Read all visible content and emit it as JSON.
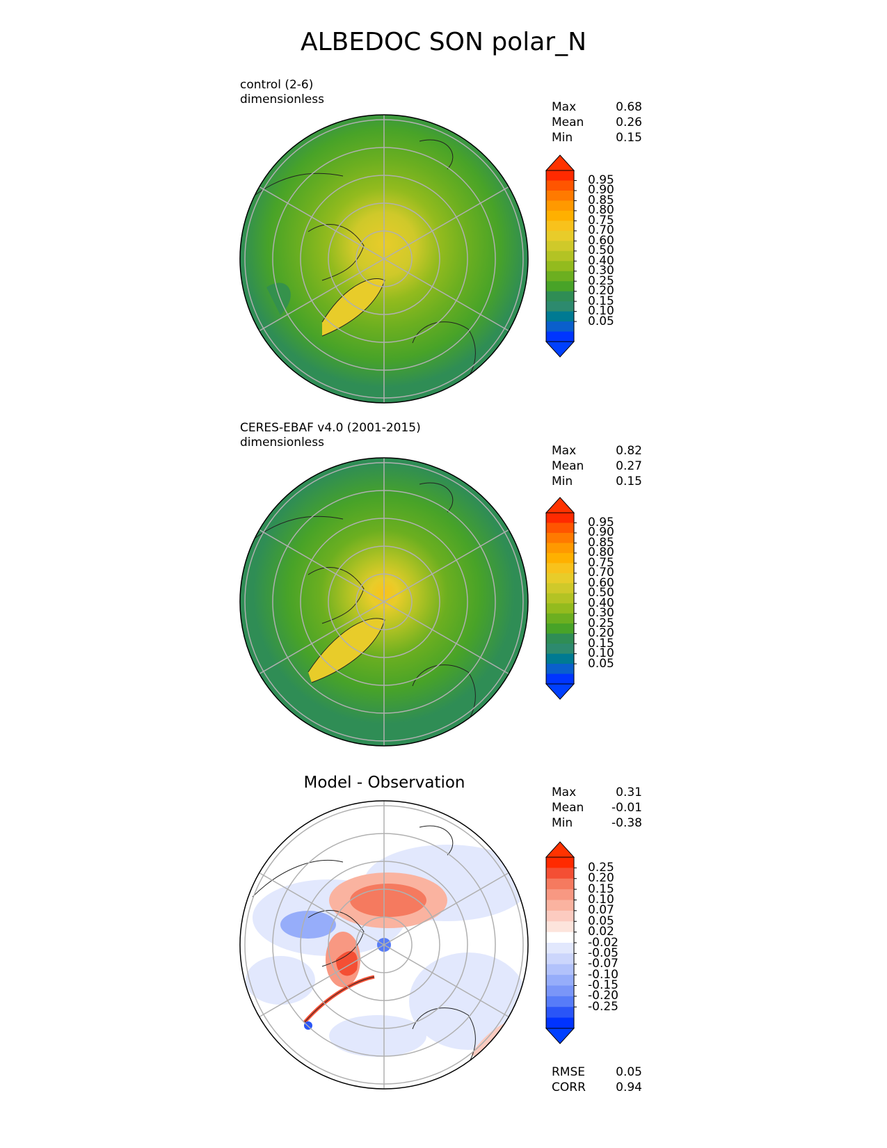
{
  "title": "ALBEDOC SON polar_N",
  "panels": [
    {
      "subtitle_line1": "control (2-6)",
      "subtitle_line2": "dimensionless",
      "stats": {
        "max_label": "Max",
        "max": "0.68",
        "mean_label": "Mean",
        "mean": "0.26",
        "min_label": "Min",
        "min": "0.15"
      }
    },
    {
      "subtitle_line1": "CERES-EBAF v4.0 (2001-2015)",
      "subtitle_line2": "dimensionless",
      "stats": {
        "max_label": "Max",
        "max": "0.82",
        "mean_label": "Mean",
        "mean": "0.27",
        "min_label": "Min",
        "min": "0.15"
      }
    },
    {
      "title": "Model - Observation",
      "stats": {
        "max_label": "Max",
        "max": "0.31",
        "mean_label": "Mean",
        "mean": "-0.01",
        "min_label": "Min",
        "min": "-0.38"
      },
      "rmse_label": "RMSE",
      "rmse": "0.05",
      "corr_label": "CORR",
      "corr": "0.94"
    }
  ],
  "colorbars": {
    "field": {
      "ticks": [
        "0.95",
        "0.90",
        "0.85",
        "0.80",
        "0.75",
        "0.70",
        "0.60",
        "0.50",
        "0.40",
        "0.30",
        "0.25",
        "0.20",
        "0.15",
        "0.10",
        "0.05"
      ],
      "colors": [
        "#ff2a00",
        "#ff5500",
        "#ff7a00",
        "#ff9900",
        "#ffb000",
        "#f8c21c",
        "#e8cc2a",
        "#cfc92a",
        "#b3c324",
        "#93bb1e",
        "#6caf20",
        "#48a328",
        "#2f8d55",
        "#2d8a6e",
        "#007a92",
        "#0a5fcc",
        "#0035ff"
      ],
      "over_color": "#ff3300",
      "under_color": "#0040ff"
    },
    "diff": {
      "ticks": [
        "0.25",
        "0.20",
        "0.15",
        "0.10",
        "0.07",
        "0.05",
        "0.02",
        "-0.02",
        "-0.05",
        "-0.07",
        "-0.10",
        "-0.15",
        "-0.20",
        "-0.25"
      ],
      "colors": [
        "#ff2a00",
        "#f44f34",
        "#f57a5f",
        "#f89882",
        "#fab3a0",
        "#fccbc0",
        "#fde4dc",
        "#ffffff",
        "#e2e8fd",
        "#ccd6fc",
        "#b2c2fb",
        "#96adfa",
        "#7a96f8",
        "#577cf8",
        "#2a55f7",
        "#0033ff"
      ],
      "over_color": "#ff3300",
      "under_color": "#0040ff"
    }
  },
  "chart_data": [
    {
      "type": "heatmap",
      "title": "control (2-6)",
      "units": "dimensionless",
      "projection": "north polar stereographic",
      "max": 0.68,
      "mean": 0.26,
      "min": 0.15,
      "levels": [
        0.05,
        0.1,
        0.15,
        0.2,
        0.25,
        0.3,
        0.4,
        0.5,
        0.6,
        0.7,
        0.75,
        0.8,
        0.85,
        0.9,
        0.95
      ]
    },
    {
      "type": "heatmap",
      "title": "CERES-EBAF v4.0 (2001-2015)",
      "units": "dimensionless",
      "projection": "north polar stereographic",
      "max": 0.82,
      "mean": 0.27,
      "min": 0.15,
      "levels": [
        0.05,
        0.1,
        0.15,
        0.2,
        0.25,
        0.3,
        0.4,
        0.5,
        0.6,
        0.7,
        0.75,
        0.8,
        0.85,
        0.9,
        0.95
      ]
    },
    {
      "type": "heatmap",
      "title": "Model - Observation",
      "projection": "north polar stereographic",
      "max": 0.31,
      "mean": -0.01,
      "min": -0.38,
      "rmse": 0.05,
      "corr": 0.94,
      "levels": [
        -0.25,
        -0.2,
        -0.15,
        -0.1,
        -0.07,
        -0.05,
        -0.02,
        0.02,
        0.05,
        0.07,
        0.1,
        0.15,
        0.2,
        0.25
      ]
    }
  ]
}
